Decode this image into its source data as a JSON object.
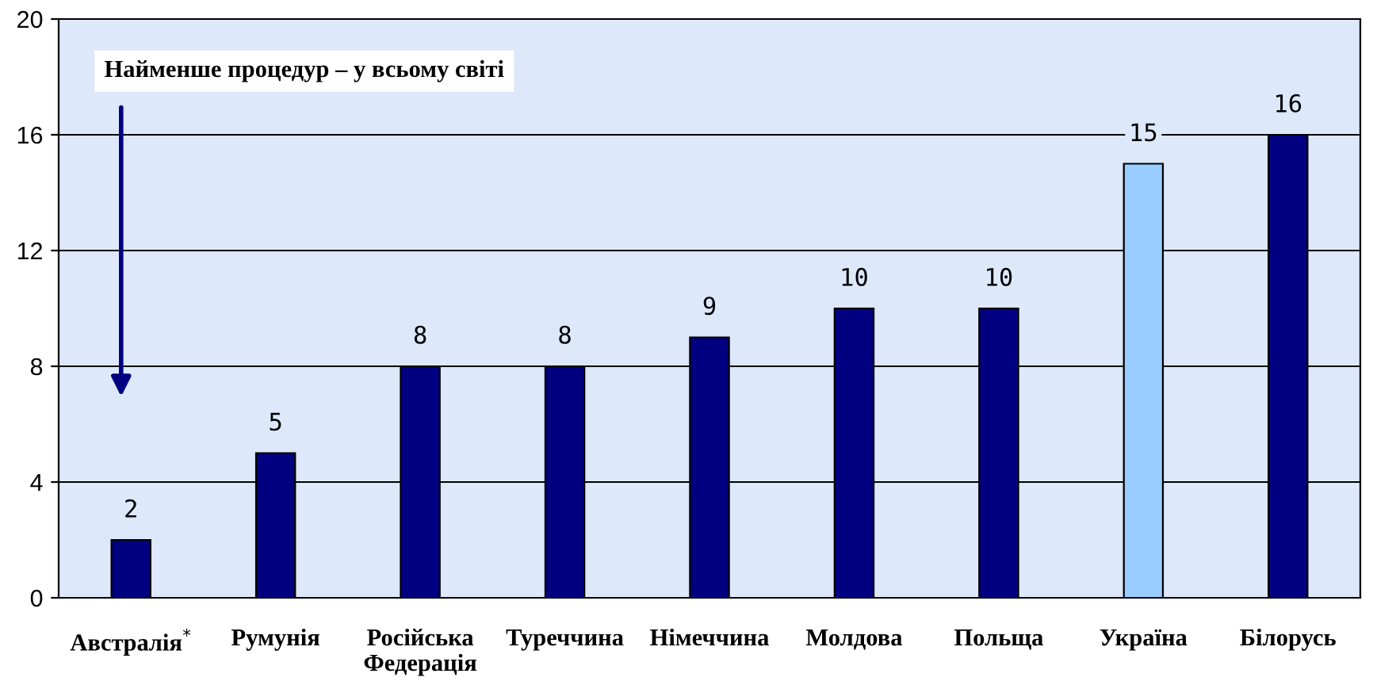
{
  "chart_data": {
    "type": "bar",
    "categories": [
      "Австралія$^{*}$",
      "Румунія",
      "Російська\nФедерація",
      "Туреччина",
      "Німеччина",
      "Молдова",
      "Польща",
      "Україна",
      "Білорусь"
    ],
    "values": [
      2,
      5,
      8,
      8,
      9,
      10,
      10,
      15,
      16
    ],
    "colors": [
      "#000080",
      "#000080",
      "#000080",
      "#000080",
      "#000080",
      "#000080",
      "#000080",
      "#99ccff",
      "#000080"
    ],
    "ylim": [
      0,
      20
    ],
    "yticks": [
      0,
      4,
      8,
      12,
      16,
      20
    ],
    "grid": "y",
    "data_labels": true,
    "annotations": [
      "Найменше процедур – у всьому світі"
    ]
  }
}
